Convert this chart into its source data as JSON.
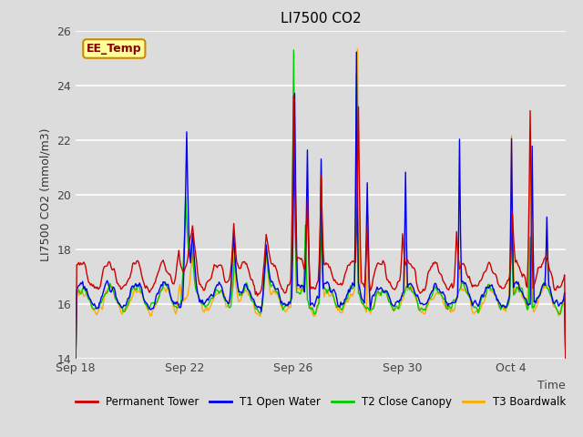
{
  "title": "LI7500 CO2",
  "ylabel": "LI7500 CO2 (mmol/m3)",
  "xlabel": "Time",
  "ylim": [
    14,
    26
  ],
  "yticks": [
    14,
    16,
    18,
    20,
    22,
    24,
    26
  ],
  "xtick_labels": [
    "Sep 18",
    "Sep 22",
    "Sep 26",
    "Sep 30",
    "Oct 4"
  ],
  "xtick_positions": [
    0,
    4,
    8,
    12,
    16
  ],
  "xlim": [
    0,
    18
  ],
  "bg_color": "#dcdcdc",
  "plot_bg_color": "#dcdcdc",
  "series_colors": {
    "Permanent Tower": "#cc0000",
    "T1 Open Water": "#0000ee",
    "T2 Close Canopy": "#00cc00",
    "T3 Boardwalk": "#ffaa00"
  },
  "annotation_label": "EE_Temp",
  "annotation_bg": "#ffff99",
  "annotation_border": "#cc8800",
  "annotation_text_color": "#880000",
  "grid_color": "#ffffff",
  "title_fontsize": 11,
  "axis_fontsize": 9,
  "tick_fontsize": 9
}
